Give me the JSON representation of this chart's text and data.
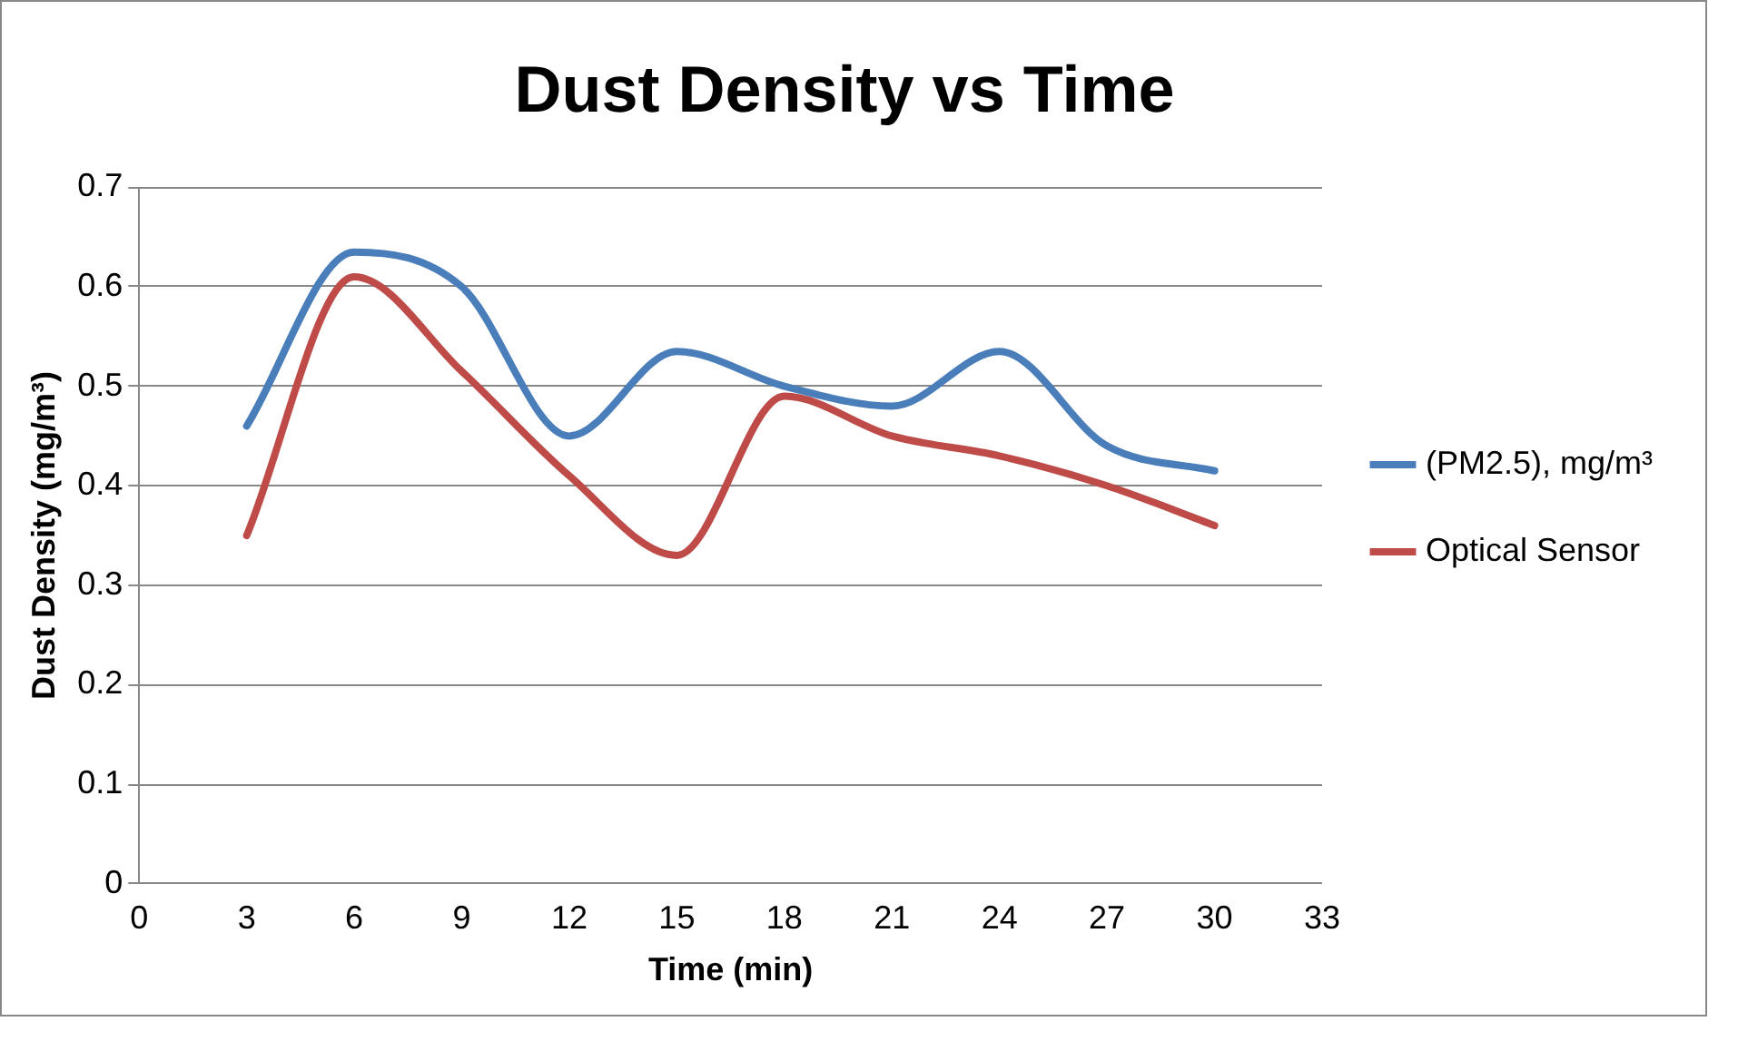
{
  "chart_data": {
    "type": "line",
    "title": "Dust Density vs Time",
    "xlabel": "Time (min)",
    "ylabel": "Dust Density (mg/m³)",
    "x": [
      3,
      6,
      9,
      12,
      15,
      18,
      21,
      24,
      27,
      30
    ],
    "series": [
      {
        "name": "(PM2.5), mg/m³",
        "color": "#4a7ebb",
        "values": [
          0.46,
          0.635,
          0.6,
          0.45,
          0.535,
          0.5,
          0.48,
          0.535,
          0.44,
          0.415
        ]
      },
      {
        "name": "Optical Sensor",
        "color": "#be4b48",
        "values": [
          0.35,
          0.61,
          0.515,
          0.41,
          0.33,
          0.49,
          0.45,
          0.43,
          0.4,
          0.36
        ]
      }
    ],
    "xlim": [
      0,
      33
    ],
    "xticks": [
      0,
      3,
      6,
      9,
      12,
      15,
      18,
      21,
      24,
      27,
      30,
      33
    ],
    "ylim": [
      0,
      0.7
    ],
    "yticks": [
      0,
      0.1,
      0.2,
      0.3,
      0.4,
      0.5,
      0.6,
      0.7
    ],
    "grid": "y",
    "legend": "right",
    "marker": "none",
    "line_style": "solid"
  }
}
